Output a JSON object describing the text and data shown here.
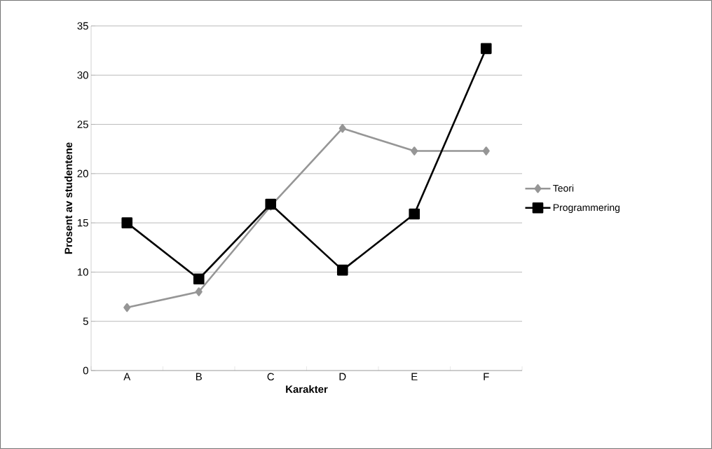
{
  "chart_data": {
    "type": "line",
    "xlabel": "Karakter",
    "ylabel": "Prosent av studentene",
    "categories": [
      "A",
      "B",
      "C",
      "D",
      "E",
      "F"
    ],
    "series": [
      {
        "name": "Teori",
        "color": "#969696",
        "marker": "diamond",
        "values": [
          6.4,
          8.0,
          16.7,
          24.6,
          22.3,
          22.3
        ]
      },
      {
        "name": "Programmering",
        "color": "#000000",
        "marker": "square",
        "values": [
          15.0,
          9.3,
          16.9,
          10.2,
          15.9,
          32.7
        ]
      }
    ],
    "ylim": [
      0,
      35
    ],
    "yticks": [
      0,
      5,
      10,
      15,
      20,
      25,
      30,
      35
    ],
    "grid": "y",
    "legend": "right",
    "line_style": "solid"
  }
}
